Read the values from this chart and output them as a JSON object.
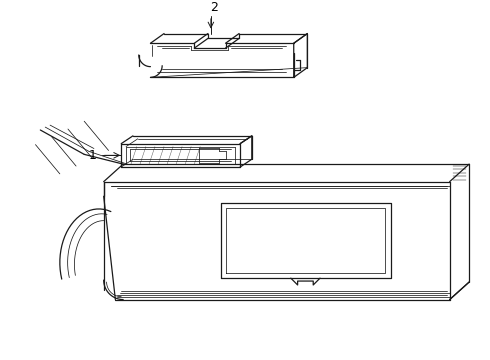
{
  "bg_color": "#ffffff",
  "line_color": "#1a1a1a",
  "label_color": "#000000",
  "lw": 0.9,
  "tlw": 0.55,
  "fig_width": 4.9,
  "fig_height": 3.6,
  "dpi": 100
}
